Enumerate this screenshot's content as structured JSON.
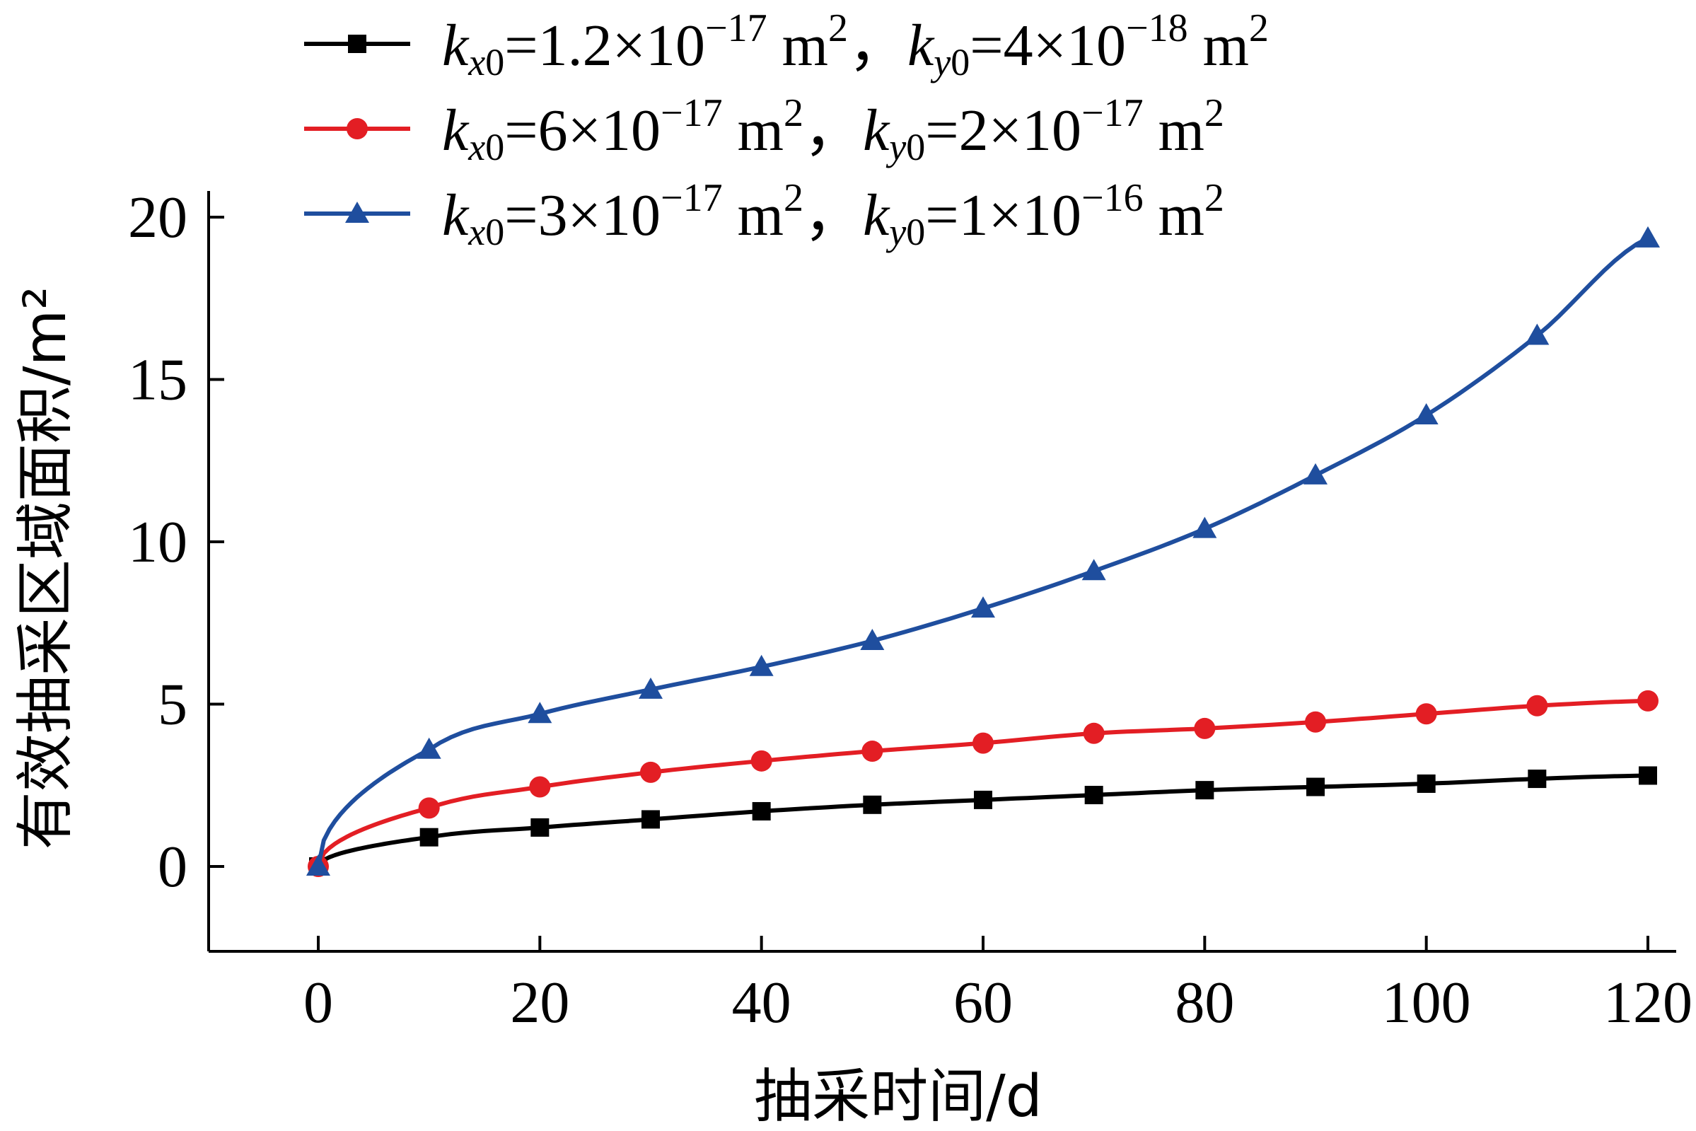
{
  "chart_data": {
    "type": "line",
    "xlabel": "抽采时间/d",
    "ylabel": "有效抽采区域面积/m²",
    "xlim": [
      -10,
      122
    ],
    "ylim": [
      -2.5,
      20
    ],
    "xticks": [
      0,
      20,
      40,
      60,
      80,
      100,
      120
    ],
    "yticks": [
      0,
      5,
      10,
      15,
      20
    ],
    "xtick_labels": [
      "0",
      "20",
      "40",
      "60",
      "80",
      "100",
      "120"
    ],
    "ytick_labels": [
      "0",
      "5",
      "10",
      "15",
      "20"
    ],
    "legend_position": "top-right",
    "series": [
      {
        "legend": {
          "kx_coef": "1.2",
          "kx_exp": "−17",
          "ky_coef": "4",
          "ky_exp": "−18"
        },
        "color": "#000000",
        "marker": "square",
        "x": [
          0,
          10,
          20,
          30,
          40,
          50,
          60,
          70,
          80,
          90,
          100,
          110,
          120
        ],
        "values": [
          0,
          0.9,
          1.2,
          1.45,
          1.7,
          1.9,
          2.05,
          2.2,
          2.35,
          2.45,
          2.55,
          2.7,
          2.8
        ]
      },
      {
        "legend": {
          "kx_coef": "6",
          "kx_exp": "−17",
          "ky_coef": "2",
          "ky_exp": "−17"
        },
        "color": "#e31e24",
        "marker": "circle",
        "x": [
          0,
          10,
          20,
          30,
          40,
          50,
          60,
          70,
          80,
          90,
          100,
          110,
          120
        ],
        "values": [
          0,
          1.8,
          2.45,
          2.9,
          3.25,
          3.55,
          3.8,
          4.1,
          4.25,
          4.45,
          4.7,
          4.95,
          5.1
        ]
      },
      {
        "legend": {
          "kx_coef": "3",
          "kx_exp": "−17",
          "ky_coef": "1",
          "ky_exp": "−16"
        },
        "color": "#1f4e9e",
        "marker": "triangle",
        "x": [
          0,
          10,
          20,
          30,
          40,
          50,
          60,
          70,
          80,
          90,
          100,
          110,
          120
        ],
        "values": [
          0,
          3.6,
          4.7,
          5.45,
          6.15,
          6.95,
          7.95,
          9.1,
          10.4,
          12.05,
          13.9,
          16.35,
          19.35
        ]
      }
    ]
  }
}
